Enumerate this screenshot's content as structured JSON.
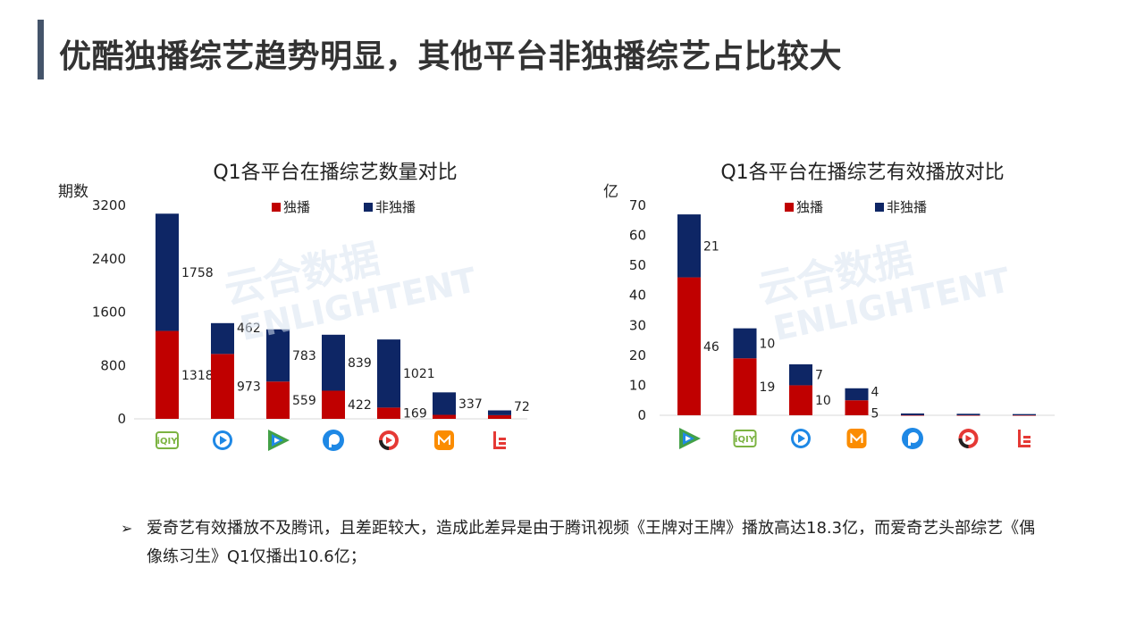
{
  "slide": {
    "title": "优酷独播综艺趋势明显，其他平台非独播综艺占比较大"
  },
  "colors": {
    "exclusive": "#c00000",
    "non_exclusive": "#0e2665",
    "title_bar": "#44546a",
    "watermark": "#d9e4f2"
  },
  "watermark": {
    "line1": "云合数据",
    "line2": "ENLIGHTENT"
  },
  "chart_data": [
    {
      "type": "bar",
      "stacked": true,
      "title": "Q1各平台在播综艺数量对比",
      "ylabel": "期数",
      "ylim": [
        0,
        3200
      ],
      "yticks": [
        0,
        800,
        1600,
        2400,
        3200
      ],
      "categories": [
        "iqiyi-icon",
        "youku-icon",
        "tencent-video-icon",
        "pptv-icon",
        "sohu-video-icon",
        "mango-tv-icon",
        "letv-icon"
      ],
      "legend_position": "top",
      "series": [
        {
          "name": "独播",
          "color": "#c00000",
          "values": [
            1318,
            973,
            559,
            422,
            169,
            60,
            55
          ],
          "labels": [
            "1318",
            "973",
            "559",
            "422",
            "169",
            "",
            ""
          ]
        },
        {
          "name": "非独播",
          "color": "#0e2665",
          "values": [
            1758,
            462,
            783,
            839,
            1021,
            337,
            72
          ],
          "labels": [
            "1758",
            "462",
            "783",
            "839",
            "1021",
            "337",
            "72"
          ]
        }
      ]
    },
    {
      "type": "bar",
      "stacked": true,
      "title": "Q1各平台在播综艺有效播放对比",
      "ylabel": "亿",
      "ylim": [
        0,
        70
      ],
      "yticks": [
        0,
        10,
        20,
        30,
        40,
        50,
        60,
        70
      ],
      "categories": [
        "tencent-video-icon",
        "iqiyi-icon",
        "youku-icon",
        "mango-tv-icon",
        "pptv-icon",
        "sohu-video-icon",
        "letv-icon"
      ],
      "legend_position": "top",
      "series": [
        {
          "name": "独播",
          "color": "#c00000",
          "values": [
            46,
            19,
            10,
            5,
            0,
            0,
            0
          ],
          "labels": [
            "46",
            "19",
            "10",
            "5",
            "",
            "",
            ""
          ]
        },
        {
          "name": "非独播",
          "color": "#0e2665",
          "values": [
            21,
            10,
            7,
            4,
            0.6,
            0.5,
            0.4
          ],
          "labels": [
            "21",
            "10",
            "7",
            "4",
            "",
            "",
            ""
          ]
        }
      ]
    }
  ],
  "note": {
    "bullet": "➢",
    "text": "爱奇艺有效播放不及腾讯，且差距较大，造成此差异是由于腾讯视频《王牌对王牌》播放高达18.3亿，而爱奇艺头部综艺《偶像练习生》Q1仅播出10.6亿；"
  }
}
